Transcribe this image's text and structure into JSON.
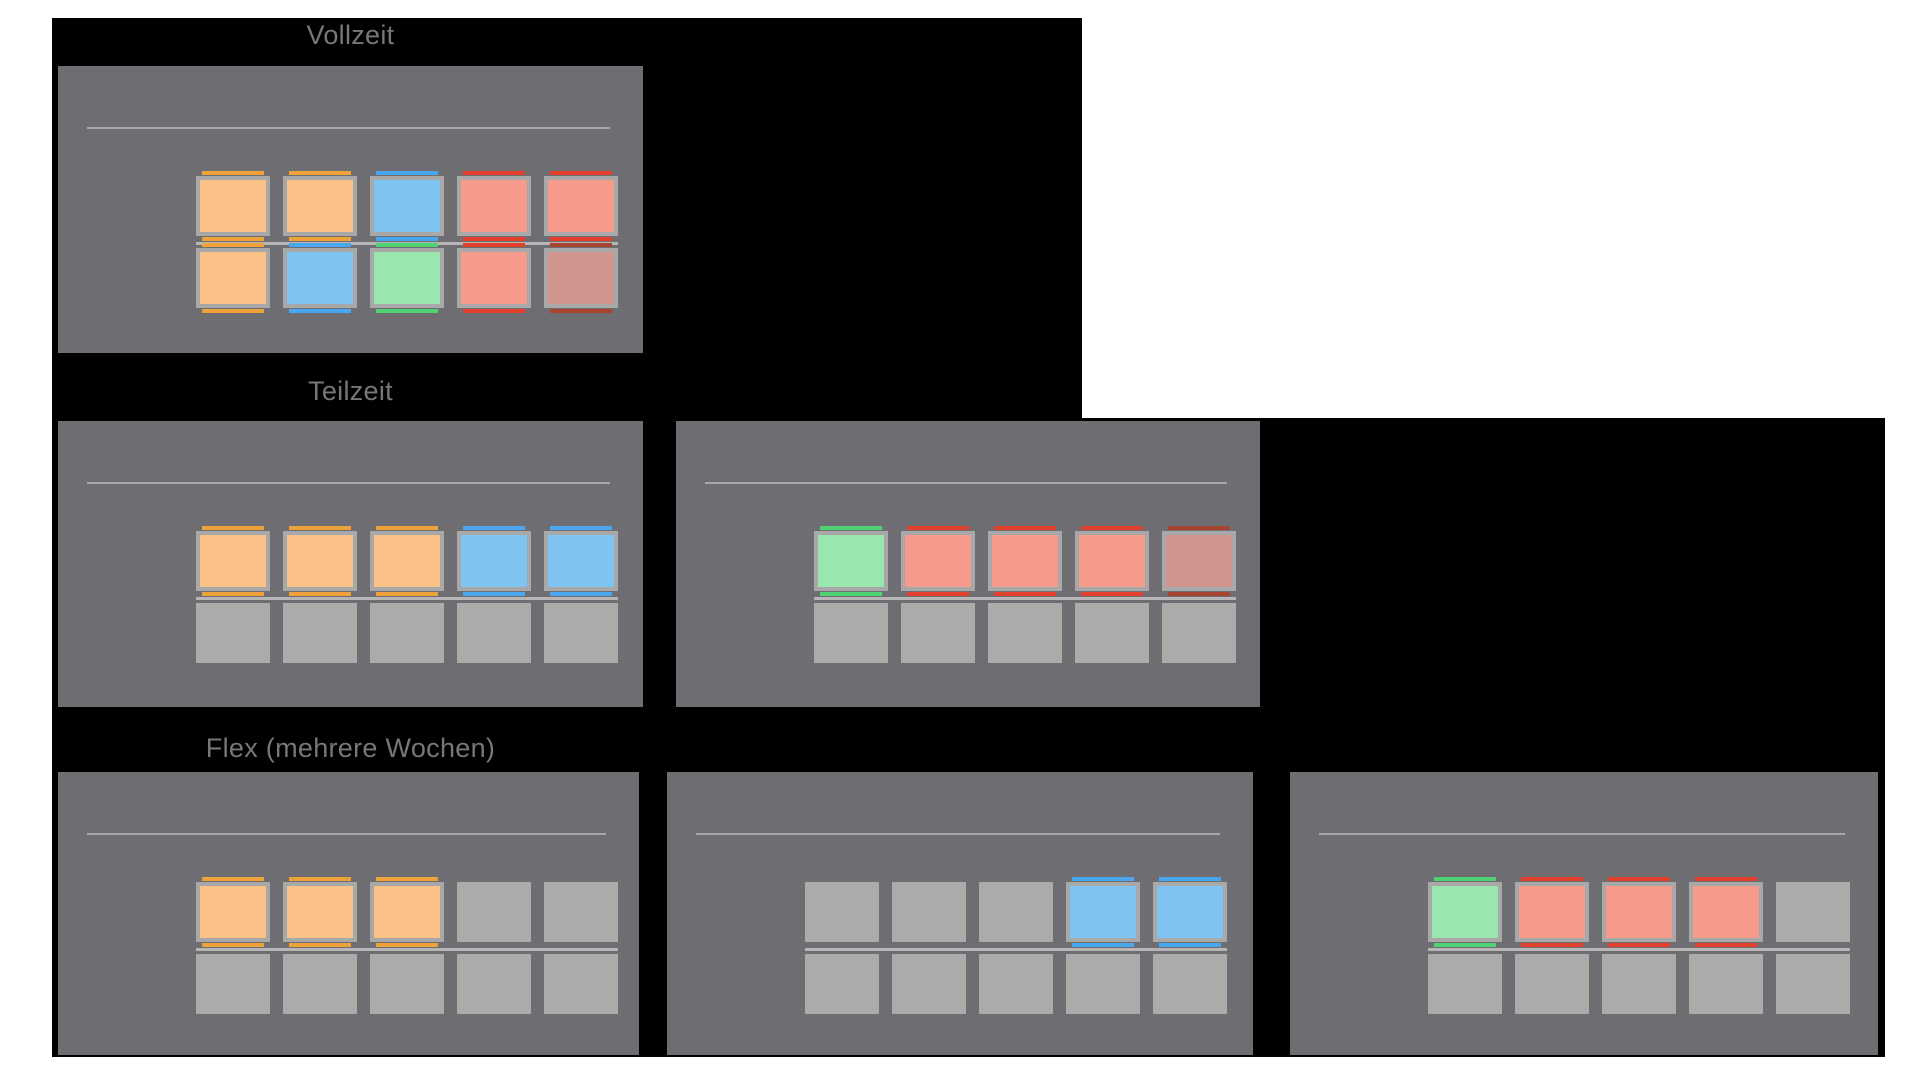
{
  "colors": {
    "page_bg": "#ffffff",
    "canvas_bg": "#000000",
    "panel_bg": "#6d6d72",
    "title_text": "#77777b",
    "panel_topline": "#a7a7ac",
    "row_divider": "#b7b5b5",
    "cell_border": "#a8a8a8",
    "cell_states": {
      "orange": {
        "fill": "#fac287",
        "accent": "#f0a23a"
      },
      "blue": {
        "fill": "#7fc3f2",
        "accent": "#4aa7ef"
      },
      "green": {
        "fill": "#99e7ae",
        "accent": "#4ed374"
      },
      "red": {
        "fill": "#f69a8c",
        "accent": "#e2402c"
      },
      "red_muted": {
        "fill": "#cf958e",
        "accent": "#a84330"
      },
      "empty": {
        "fill": "#adaaaa",
        "accent": null
      }
    }
  },
  "sections": [
    {
      "title": "Vollzeit",
      "panels": [
        {
          "weeks": [
            [
              "orange",
              "orange",
              "blue",
              "red",
              "red"
            ],
            [
              "orange",
              "blue",
              "green",
              "red",
              "red_muted"
            ]
          ]
        }
      ]
    },
    {
      "title": "Teilzeit",
      "panels": [
        {
          "weeks": [
            [
              "orange",
              "orange",
              "orange",
              "blue",
              "blue"
            ],
            [
              "empty",
              "empty",
              "empty",
              "empty",
              "empty"
            ]
          ]
        },
        {
          "weeks": [
            [
              "green",
              "red",
              "red",
              "red",
              "red_muted"
            ],
            [
              "empty",
              "empty",
              "empty",
              "empty",
              "empty"
            ]
          ]
        }
      ]
    },
    {
      "title": "Flex (mehrere Wochen)",
      "panels": [
        {
          "weeks": [
            [
              "orange",
              "orange",
              "orange",
              "empty",
              "empty"
            ],
            [
              "empty",
              "empty",
              "empty",
              "empty",
              "empty"
            ]
          ]
        },
        {
          "weeks": [
            [
              "empty",
              "empty",
              "empty",
              "blue",
              "blue"
            ],
            [
              "empty",
              "empty",
              "empty",
              "empty",
              "empty"
            ]
          ]
        },
        {
          "weeks": [
            [
              "green",
              "red",
              "red",
              "red",
              "empty"
            ],
            [
              "empty",
              "empty",
              "empty",
              "empty",
              "empty"
            ]
          ]
        }
      ]
    }
  ]
}
